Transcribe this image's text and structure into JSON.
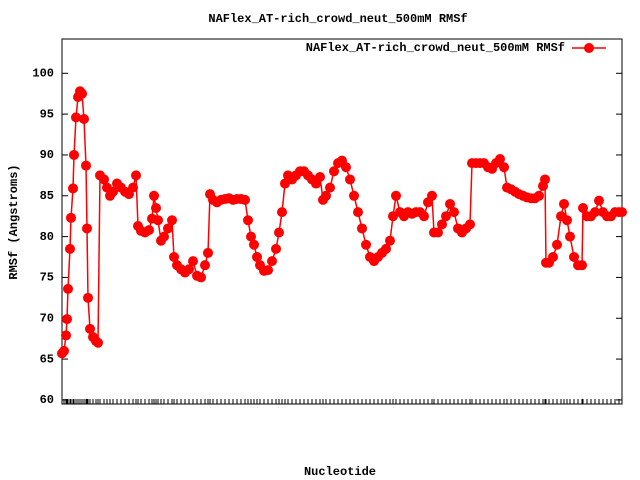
{
  "chart_data": {
    "type": "line",
    "title": "NAFlex_AT-rich_crowd_neut_500mM RMSf",
    "x_label": "Nucleotide",
    "y_label": "RMSf (Angstroms)",
    "xlim": [
      0,
      560
    ],
    "ylim": [
      59.5,
      104.2
    ],
    "yticks": [
      60,
      65,
      70,
      75,
      80,
      85,
      90,
      95,
      100
    ],
    "legend": "top-right",
    "x": [
      0,
      2,
      4,
      5,
      6,
      8,
      9,
      11,
      12,
      14,
      16,
      18,
      20,
      22,
      24,
      25,
      26,
      28,
      31,
      34,
      36,
      38,
      42,
      45,
      48,
      51,
      55,
      59,
      63,
      67,
      71,
      74,
      76,
      79,
      83,
      87,
      90,
      92,
      94,
      96,
      99,
      102,
      106,
      110,
      112,
      115,
      119,
      123,
      127,
      131,
      135,
      139,
      143,
      146,
      148,
      151,
      155,
      159,
      163,
      167,
      171,
      175,
      179,
      183,
      186,
      189,
      192,
      195,
      198,
      202,
      206,
      210,
      214,
      217,
      220,
      223,
      226,
      230,
      234,
      238,
      242,
      246,
      250,
      254,
      258,
      261,
      264,
      268,
      272,
      276,
      280,
      284,
      288,
      292,
      296,
      300,
      304,
      308,
      312,
      316,
      320,
      324,
      328,
      331,
      334,
      338,
      342,
      346,
      350,
      354,
      358,
      362,
      366,
      370,
      372,
      376,
      380,
      384,
      388,
      392,
      396,
      400,
      404,
      408,
      410,
      414,
      418,
      422,
      426,
      430,
      434,
      438,
      442,
      445,
      449,
      453,
      457,
      461,
      465,
      469,
      473,
      477,
      481,
      483,
      484,
      487,
      491,
      495,
      499,
      502,
      505,
      508,
      512,
      516,
      520,
      521,
      525,
      529,
      533,
      537,
      541,
      545,
      549,
      553,
      557,
      560
    ],
    "series": [
      {
        "name": "NAFlex_AT-rich_crowd_neut_500mM RMSf",
        "color": "#ff0000",
        "values": [
          65.7,
          66,
          67.9,
          69.9,
          73.6,
          78.5,
          82.3,
          85.9,
          90,
          94.6,
          97.1,
          97.8,
          97.5,
          94.4,
          88.7,
          81,
          72.5,
          68.7,
          67.7,
          67.2,
          67,
          87.5,
          87,
          86,
          85,
          85.5,
          86.5,
          86,
          85.5,
          85.2,
          86,
          87.5,
          81.3,
          80.7,
          80.5,
          80.8,
          82.2,
          85,
          83.5,
          82,
          79.5,
          80,
          81,
          82,
          77.5,
          76.5,
          76,
          75.6,
          76,
          77,
          75.2,
          75,
          76.5,
          78,
          85.2,
          84.5,
          84.2,
          84.5,
          84.6,
          84.7,
          84.5,
          84.6,
          84.6,
          84.5,
          82,
          80,
          79,
          77.5,
          76.5,
          75.8,
          75.9,
          77,
          78.5,
          80.5,
          83,
          86.5,
          87.5,
          87,
          87.5,
          88,
          88,
          87.5,
          87,
          86.5,
          87.3,
          84.5,
          85,
          86,
          88,
          89,
          89.3,
          88.5,
          87,
          85,
          83,
          81,
          79,
          77.5,
          77,
          77.5,
          78,
          78.5,
          79.5,
          82.5,
          85,
          83,
          82.5,
          83,
          82.8,
          83,
          83,
          82.5,
          84.2,
          85,
          80.5,
          80.5,
          81.5,
          82.5,
          84,
          83,
          81,
          80.5,
          81,
          81.5,
          89,
          89,
          89,
          89,
          88.5,
          88.3,
          89,
          89.5,
          88.5,
          86,
          85.8,
          85.5,
          85.2,
          85,
          84.8,
          84.7,
          84.7,
          85,
          86.2,
          87,
          76.8,
          76.8,
          77.5,
          79,
          82.5,
          84,
          82,
          80,
          77.5,
          76.5,
          76.5,
          83.5,
          82.5,
          82.5,
          83,
          84.4,
          83,
          82.5,
          82.5,
          83,
          83,
          83
        ]
      }
    ]
  }
}
